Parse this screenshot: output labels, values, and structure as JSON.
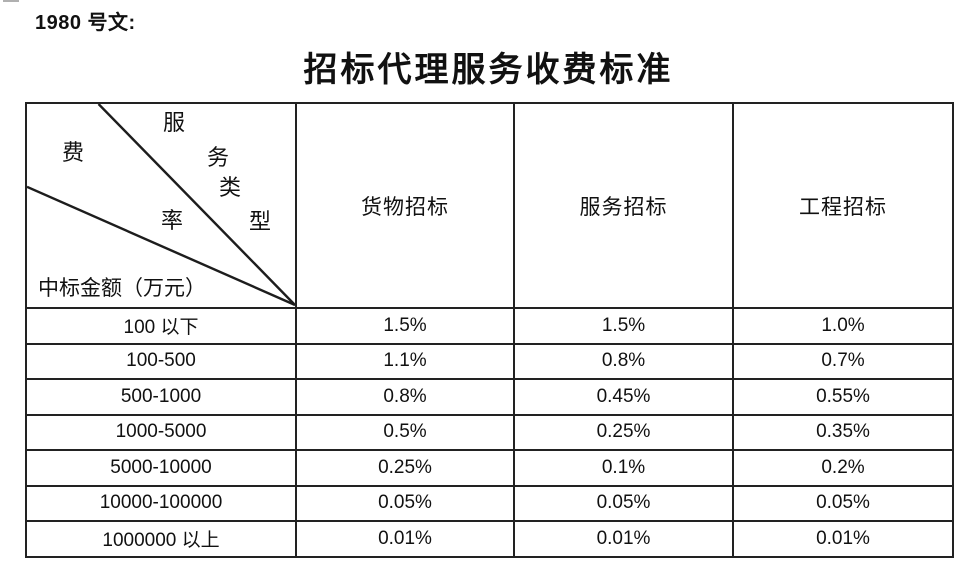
{
  "header": {
    "doc_label": "1980 号文:",
    "title": "招标代理服务收费标准"
  },
  "table": {
    "corner": {
      "service_type_chars": [
        "服",
        "务",
        "类",
        "型"
      ],
      "fee_rate_chars": [
        "费",
        "率"
      ],
      "amount_label": "中标金额（万元）"
    },
    "columns": [
      "货物招标",
      "服务招标",
      "工程招标"
    ],
    "rows": [
      {
        "range": "100 以下",
        "goods": "1.5%",
        "services": "1.5%",
        "engineering": "1.0%"
      },
      {
        "range": "100-500",
        "goods": "1.1%",
        "services": "0.8%",
        "engineering": "0.7%"
      },
      {
        "range": "500-1000",
        "goods": "0.8%",
        "services": "0.45%",
        "engineering": "0.55%"
      },
      {
        "range": "1000-5000",
        "goods": "0.5%",
        "services": "0.25%",
        "engineering": "0.35%"
      },
      {
        "range": "5000-10000",
        "goods": "0.25%",
        "services": "0.1%",
        "engineering": "0.2%"
      },
      {
        "range": "10000-100000",
        "goods": "0.05%",
        "services": "0.05%",
        "engineering": "0.05%"
      },
      {
        "range": "1000000 以上",
        "goods": "0.01%",
        "services": "0.01%",
        "engineering": "0.01%"
      }
    ]
  },
  "line_color": "#1d1d1d"
}
